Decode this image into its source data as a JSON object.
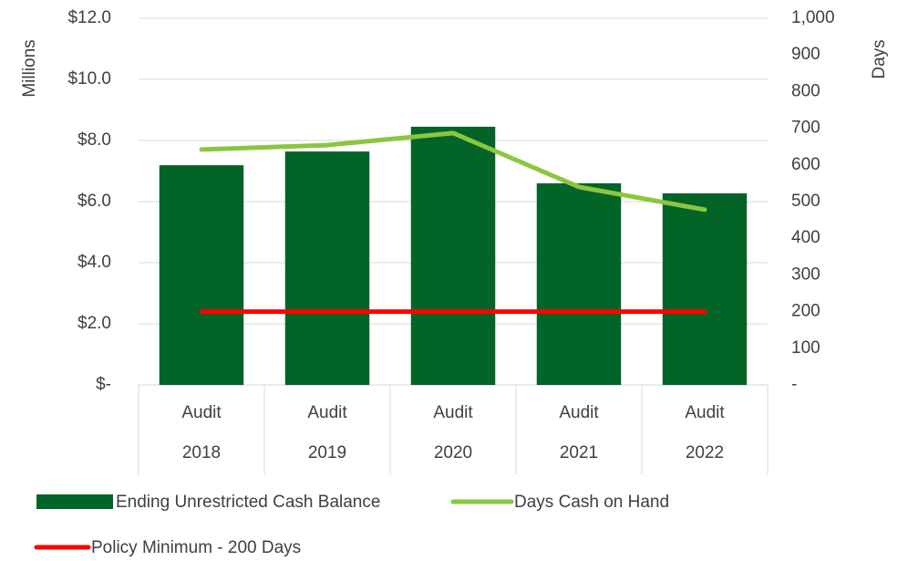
{
  "chart_data": {
    "type": "combo",
    "ylabel": "Millions",
    "y2label": "Days",
    "categories": [
      [
        "Audit",
        "2018"
      ],
      [
        "Audit",
        "2019"
      ],
      [
        "Audit",
        "2020"
      ],
      [
        "Audit",
        "2021"
      ],
      [
        "Audit",
        "2022"
      ]
    ],
    "ylim": [
      0,
      12
    ],
    "yticks": [
      {
        "value": 0,
        "label": "$-"
      },
      {
        "value": 2,
        "label": "$2.0"
      },
      {
        "value": 4,
        "label": "$4.0"
      },
      {
        "value": 6,
        "label": "$6.0"
      },
      {
        "value": 8,
        "label": "$8.0"
      },
      {
        "value": 10,
        "label": "$10.0"
      },
      {
        "value": 12,
        "label": "$12.0"
      }
    ],
    "y2lim": [
      0,
      1000
    ],
    "y2ticks": [
      {
        "value": 0,
        "label": "-"
      },
      100,
      200,
      300,
      400,
      500,
      600,
      700,
      800,
      900,
      {
        "value": 1000,
        "label": "1,000"
      }
    ],
    "grid": true,
    "legend": "bottom",
    "series": [
      {
        "name": "Ending Unrestricted Cash Balance",
        "type": "bar",
        "axis": "y",
        "color": "#036428",
        "values": [
          7.19,
          7.64,
          8.45,
          6.6,
          6.27
        ]
      },
      {
        "name": "Days Cash on Hand",
        "type": "line",
        "axis": "y2",
        "color": "#8cc63e",
        "values": [
          642,
          654,
          687,
          540,
          478
        ]
      },
      {
        "name": "Policy Minimum - 200 Days",
        "type": "line",
        "axis": "y2",
        "color": "#ff0000",
        "values": [
          200,
          200,
          200,
          200,
          200
        ]
      }
    ]
  }
}
